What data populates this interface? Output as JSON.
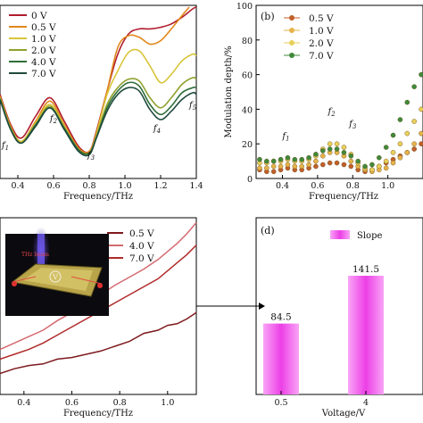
{
  "chart_data": [
    {
      "panel": "a",
      "type": "line",
      "xlabel": "Frequency/THz",
      "ylabel": "",
      "xlim": [
        0.3,
        1.4
      ],
      "ylim": [
        0,
        1
      ],
      "xticks": [
        "0.4",
        "0.6",
        "0.8",
        "1.0",
        "1.2",
        "1.4"
      ],
      "legend": {
        "position": "top-left",
        "entries": [
          "0 V",
          "0.5 V",
          "1.0 V",
          "2.0 V",
          "4.0 V",
          "7.0 V"
        ]
      },
      "annotations": [
        "f1",
        "f2",
        "f3",
        "f4",
        "f5"
      ],
      "series": [
        {
          "name": "0 V",
          "color": "#b01c2e",
          "x": [
            0.3,
            0.36,
            0.42,
            0.5,
            0.58,
            0.66,
            0.74,
            0.8,
            0.84,
            0.9,
            0.96,
            1.02,
            1.08,
            1.14,
            1.2,
            1.26,
            1.32,
            1.38,
            1.4
          ],
          "y": [
            0.48,
            0.3,
            0.22,
            0.35,
            0.46,
            0.32,
            0.17,
            0.14,
            0.26,
            0.5,
            0.72,
            0.84,
            0.87,
            0.87,
            0.88,
            0.9,
            0.94,
            0.99,
            1.0
          ]
        },
        {
          "name": "0.5 V",
          "color": "#e0881a",
          "x": [
            0.3,
            0.36,
            0.42,
            0.5,
            0.58,
            0.66,
            0.74,
            0.8,
            0.84,
            0.9,
            0.96,
            1.02,
            1.08,
            1.14,
            1.2,
            1.26,
            1.32,
            1.36
          ],
          "y": [
            0.47,
            0.29,
            0.2,
            0.32,
            0.44,
            0.3,
            0.16,
            0.14,
            0.25,
            0.5,
            0.76,
            0.83,
            0.82,
            0.78,
            0.8,
            0.87,
            0.95,
            1.0
          ]
        },
        {
          "name": "1.0 V",
          "color": "#d8c53a",
          "x": [
            0.3,
            0.36,
            0.42,
            0.5,
            0.58,
            0.66,
            0.74,
            0.8,
            0.84,
            0.9,
            0.96,
            1.02,
            1.08,
            1.14,
            1.2,
            1.26,
            1.32,
            1.38,
            1.4
          ],
          "y": [
            0.46,
            0.28,
            0.2,
            0.31,
            0.42,
            0.29,
            0.15,
            0.13,
            0.24,
            0.48,
            0.62,
            0.73,
            0.74,
            0.65,
            0.55,
            0.6,
            0.68,
            0.72,
            0.71
          ]
        },
        {
          "name": "2.0 V",
          "color": "#8fa12e",
          "x": [
            0.3,
            0.36,
            0.42,
            0.5,
            0.58,
            0.66,
            0.74,
            0.8,
            0.84,
            0.9,
            0.96,
            1.02,
            1.08,
            1.14,
            1.2,
            1.26,
            1.32,
            1.38,
            1.4
          ],
          "y": [
            0.46,
            0.28,
            0.19,
            0.3,
            0.41,
            0.28,
            0.15,
            0.13,
            0.23,
            0.42,
            0.52,
            0.57,
            0.56,
            0.46,
            0.4,
            0.46,
            0.54,
            0.58,
            0.57
          ]
        },
        {
          "name": "4.0 V",
          "color": "#2f6e3a",
          "x": [
            0.3,
            0.36,
            0.42,
            0.5,
            0.58,
            0.66,
            0.74,
            0.8,
            0.84,
            0.9,
            0.96,
            1.02,
            1.08,
            1.14,
            1.2,
            1.26,
            1.32,
            1.38,
            1.4
          ],
          "y": [
            0.45,
            0.27,
            0.19,
            0.3,
            0.4,
            0.28,
            0.15,
            0.13,
            0.22,
            0.4,
            0.5,
            0.55,
            0.53,
            0.42,
            0.36,
            0.41,
            0.49,
            0.52,
            0.52
          ]
        },
        {
          "name": "7.0 V",
          "color": "#1f4a3c",
          "x": [
            0.3,
            0.36,
            0.42,
            0.5,
            0.58,
            0.66,
            0.74,
            0.8,
            0.84,
            0.9,
            0.96,
            1.02,
            1.08,
            1.14,
            1.2,
            1.26,
            1.32,
            1.38,
            1.4
          ],
          "y": [
            0.45,
            0.27,
            0.19,
            0.29,
            0.4,
            0.27,
            0.14,
            0.12,
            0.22,
            0.38,
            0.48,
            0.52,
            0.5,
            0.39,
            0.33,
            0.38,
            0.45,
            0.49,
            0.48
          ]
        }
      ]
    },
    {
      "panel": "b",
      "type": "scatter",
      "label": "(b)",
      "xlabel": "Frequency/THz",
      "ylabel": "Modulation depth/%",
      "xlim": [
        0.25,
        1.2
      ],
      "ylim": [
        0,
        100
      ],
      "xticks": [
        "0.4",
        "0.6",
        "0.8",
        "1.0"
      ],
      "yticks": [
        "0",
        "20",
        "40",
        "60",
        "80",
        "100"
      ],
      "legend": {
        "position": "top-left",
        "entries": [
          "0.5 V",
          "1.0 V",
          "2.0 V",
          "7.0 V"
        ]
      },
      "annotations": [
        "f1",
        "f2",
        "f3"
      ],
      "series": [
        {
          "name": "0.5 V",
          "color": "#c0602a",
          "x": [
            0.27,
            0.31,
            0.35,
            0.39,
            0.43,
            0.47,
            0.51,
            0.55,
            0.59,
            0.63,
            0.67,
            0.71,
            0.75,
            0.79,
            0.83,
            0.87,
            0.91,
            0.95,
            0.99,
            1.03,
            1.07,
            1.11,
            1.15,
            1.19
          ],
          "y": [
            5,
            4,
            4,
            5,
            6,
            5,
            5,
            6,
            7,
            8,
            9,
            9,
            8,
            7,
            5,
            4,
            5,
            7,
            9,
            11,
            13,
            15,
            17,
            20
          ]
        },
        {
          "name": "1.0 V",
          "color": "#e6b34a",
          "x": [
            0.27,
            0.31,
            0.35,
            0.39,
            0.43,
            0.47,
            0.51,
            0.55,
            0.59,
            0.63,
            0.67,
            0.71,
            0.75,
            0.79,
            0.83,
            0.87,
            0.91,
            0.95,
            0.99,
            1.03,
            1.07,
            1.11,
            1.15,
            1.19
          ],
          "y": [
            6,
            6,
            7,
            7,
            8,
            7,
            7,
            8,
            10,
            13,
            15,
            15,
            13,
            10,
            7,
            5,
            4,
            5,
            6,
            9,
            12,
            15,
            20,
            26
          ]
        },
        {
          "name": "2.0 V",
          "color": "#e8cf5a",
          "x": [
            0.27,
            0.31,
            0.35,
            0.39,
            0.43,
            0.47,
            0.51,
            0.55,
            0.59,
            0.63,
            0.67,
            0.71,
            0.75,
            0.79,
            0.83,
            0.87,
            0.91,
            0.95,
            0.99,
            1.03,
            1.07,
            1.11,
            1.15,
            1.19
          ],
          "y": [
            9,
            9,
            10,
            10,
            11,
            10,
            10,
            11,
            13,
            17,
            20,
            20,
            18,
            14,
            9,
            6,
            5,
            7,
            10,
            15,
            20,
            26,
            33,
            40
          ]
        },
        {
          "name": "7.0 V",
          "color": "#3f8a3a",
          "x": [
            0.27,
            0.31,
            0.35,
            0.39,
            0.43,
            0.47,
            0.51,
            0.55,
            0.59,
            0.63,
            0.67,
            0.71,
            0.75,
            0.79,
            0.83,
            0.87,
            0.91,
            0.95,
            0.99,
            1.03,
            1.07,
            1.11,
            1.15,
            1.19
          ],
          "y": [
            11,
            10,
            10,
            11,
            12,
            11,
            11,
            12,
            14,
            16,
            17,
            17,
            15,
            13,
            10,
            7,
            8,
            12,
            18,
            25,
            34,
            44,
            53,
            60
          ]
        }
      ]
    },
    {
      "panel": "c",
      "type": "line",
      "xlabel": "Frequency/THz",
      "ylabel": "",
      "xlim": [
        0.3,
        1.12
      ],
      "ylim": [
        0,
        1
      ],
      "xticks": [
        "0.4",
        "0.6",
        "0.8",
        "1.0"
      ],
      "legend": {
        "position": "top-right",
        "entries": [
          "0.5 V",
          "4.0 V",
          "7.0 V"
        ]
      },
      "inset_label": "THz beam",
      "inset_symbol": "V",
      "series": [
        {
          "name": "0.5 V",
          "color": "#7e1a1e",
          "x": [
            0.3,
            0.36,
            0.42,
            0.48,
            0.54,
            0.6,
            0.66,
            0.72,
            0.78,
            0.84,
            0.9,
            0.96,
            1.0,
            1.04,
            1.08,
            1.12
          ],
          "y": [
            0.03,
            0.06,
            0.08,
            0.09,
            0.12,
            0.13,
            0.15,
            0.17,
            0.2,
            0.23,
            0.28,
            0.3,
            0.33,
            0.34,
            0.37,
            0.41
          ]
        },
        {
          "name": "4.0 V",
          "color": "#d46a70",
          "x": [
            0.3,
            0.36,
            0.42,
            0.48,
            0.54,
            0.6,
            0.66,
            0.72,
            0.78,
            0.84,
            0.9,
            0.96,
            1.0,
            1.04,
            1.08,
            1.12
          ],
          "y": [
            0.18,
            0.22,
            0.26,
            0.3,
            0.36,
            0.41,
            0.47,
            0.52,
            0.58,
            0.63,
            0.68,
            0.74,
            0.79,
            0.84,
            0.9,
            0.97
          ]
        },
        {
          "name": "7.0 V",
          "color": "#b02a2a",
          "x": [
            0.3,
            0.36,
            0.42,
            0.48,
            0.54,
            0.6,
            0.66,
            0.72,
            0.78,
            0.84,
            0.9,
            0.96,
            1.0,
            1.04,
            1.08,
            1.12
          ],
          "y": [
            0.12,
            0.15,
            0.18,
            0.22,
            0.27,
            0.32,
            0.37,
            0.42,
            0.47,
            0.52,
            0.57,
            0.62,
            0.67,
            0.72,
            0.77,
            0.83
          ]
        }
      ]
    },
    {
      "panel": "d",
      "type": "bar",
      "label": "(d)",
      "xlabel": "Voltage/V",
      "ylabel": "",
      "categories": [
        "0.5",
        "4"
      ],
      "values": [
        84.5,
        141.5
      ],
      "value_labels": [
        "84.5",
        "141.5"
      ],
      "ylim": [
        0,
        200
      ],
      "legend": {
        "position": "top-center",
        "entries": [
          "Slope"
        ]
      },
      "color": "#ee55ee"
    }
  ]
}
